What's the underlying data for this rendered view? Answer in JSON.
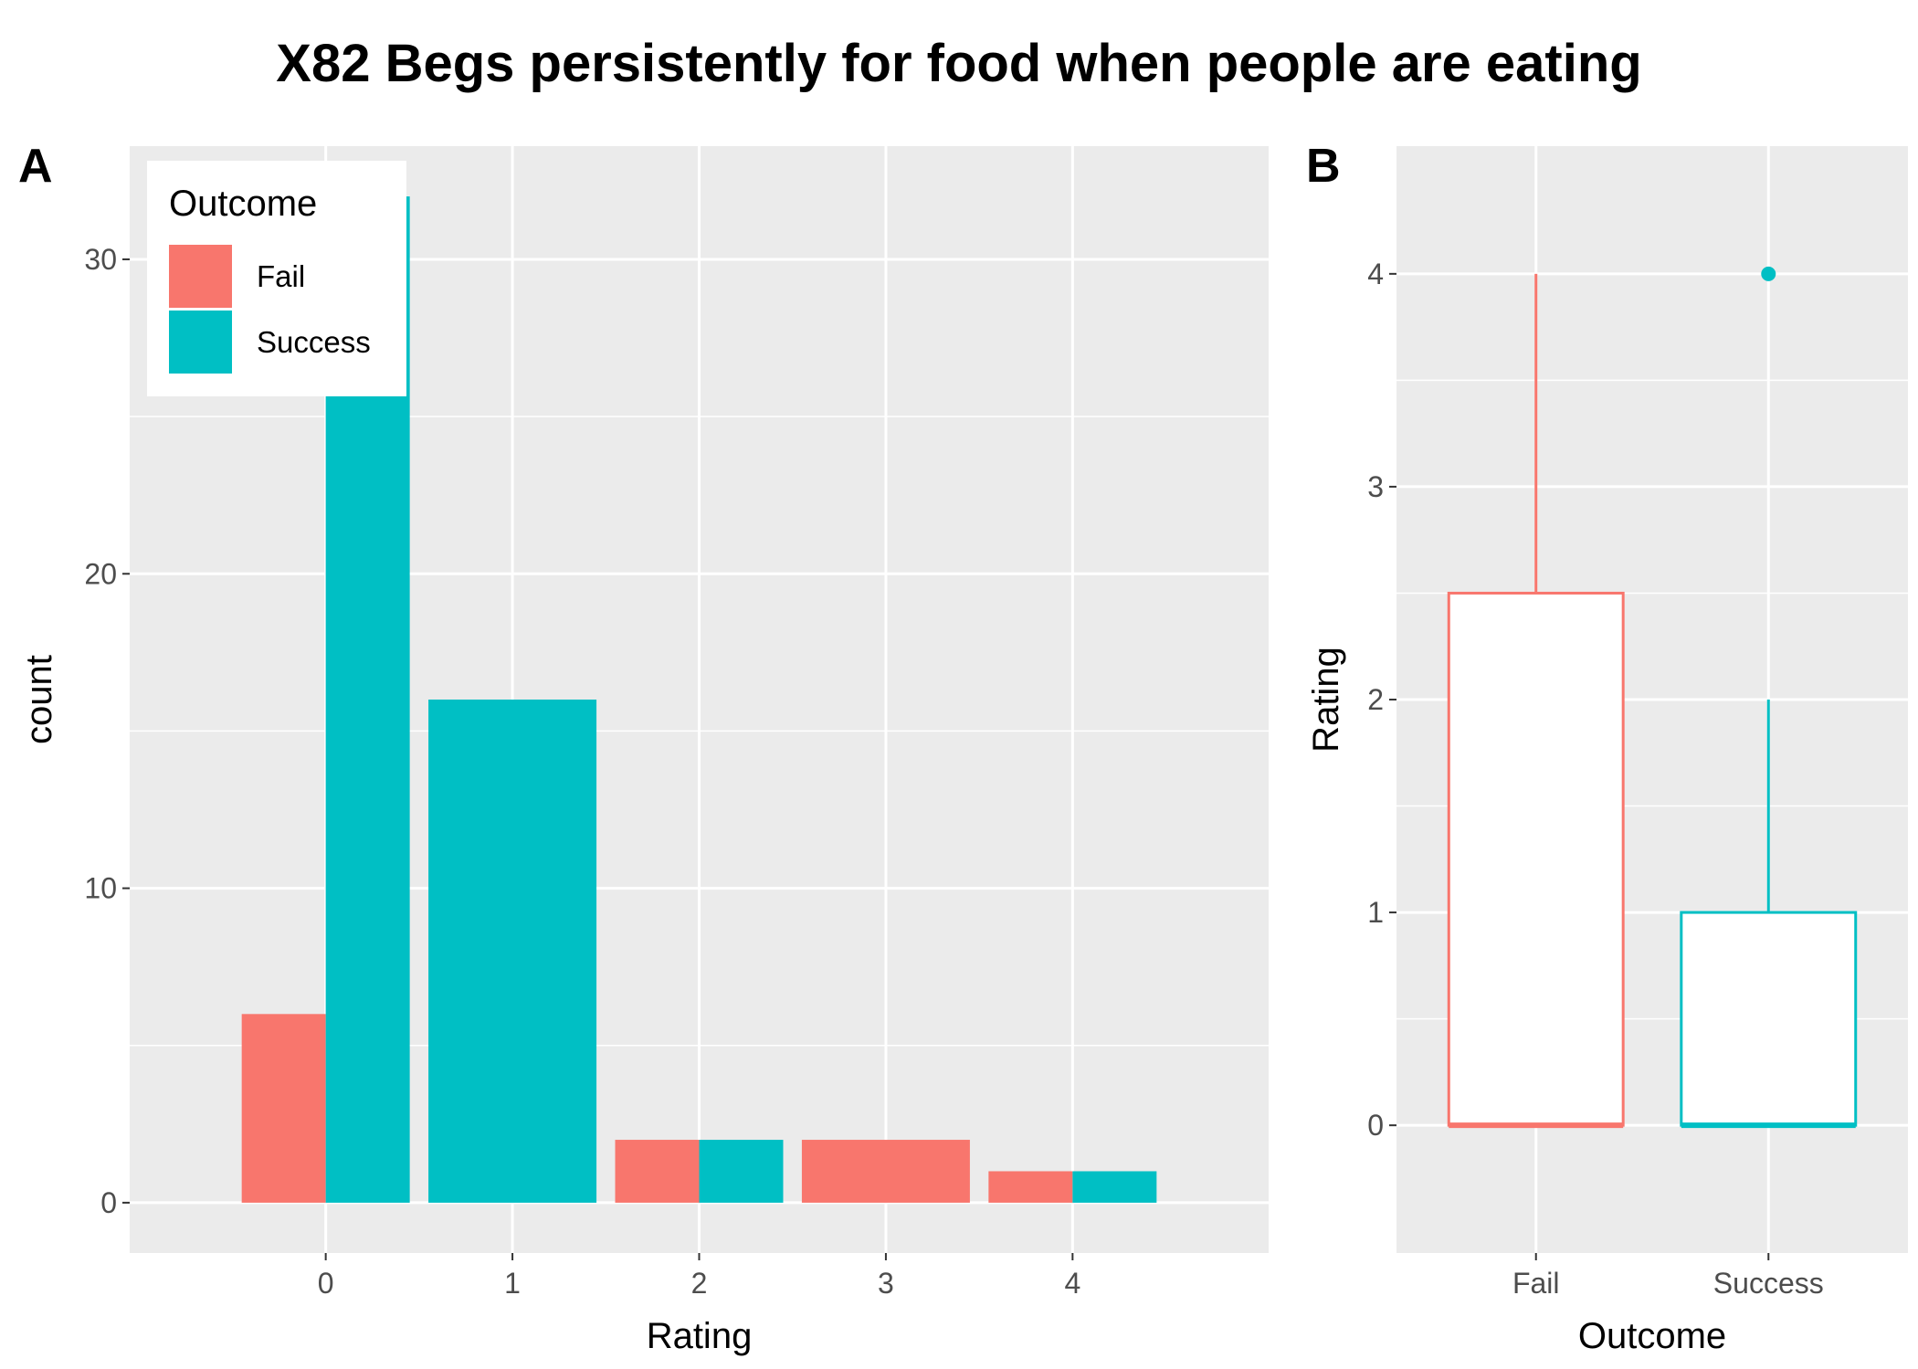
{
  "title": "X82 Begs persistently for food when people are eating",
  "colors": {
    "fail": "#F8766D",
    "success": "#00BFC4",
    "panel_bg": "#EBEBEB",
    "grid": "#FFFFFF",
    "tick_text": "#4D4D4D"
  },
  "chart_data": [
    {
      "panel_label": "A",
      "type": "bar",
      "position": "dodge",
      "xlabel": "Rating",
      "ylabel": "count",
      "categories": [
        0,
        1,
        2,
        3,
        4
      ],
      "xlim": [
        -1.05,
        5.05
      ],
      "ylim": [
        -1.6,
        33.6
      ],
      "yticks": [
        0,
        10,
        20,
        30
      ],
      "legend": {
        "title": "Outcome",
        "placement": "top-left",
        "entries": [
          "Fail",
          "Success"
        ]
      },
      "series": [
        {
          "name": "Fail",
          "values": [
            6,
            0,
            2,
            2,
            1
          ]
        },
        {
          "name": "Success",
          "values": [
            32,
            16,
            2,
            0,
            1
          ]
        }
      ]
    },
    {
      "panel_label": "B",
      "type": "boxplot",
      "xlabel": "Outcome",
      "ylabel": "Rating",
      "categories": [
        "Fail",
        "Success"
      ],
      "ylim": [
        -0.6,
        4.6
      ],
      "yticks": [
        0,
        1,
        2,
        3,
        4
      ],
      "boxes": [
        {
          "name": "Fail",
          "lower_whisker": 0,
          "q1": 0,
          "median": 0,
          "q3": 2.5,
          "upper_whisker": 4,
          "outliers": []
        },
        {
          "name": "Success",
          "lower_whisker": 0,
          "q1": 0,
          "median": 0,
          "q3": 1,
          "upper_whisker": 2,
          "outliers": [
            4
          ]
        }
      ]
    }
  ]
}
